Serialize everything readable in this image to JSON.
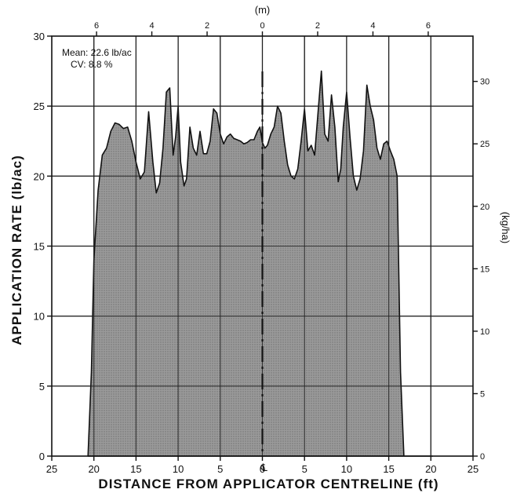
{
  "chart_data": {
    "type": "area",
    "xlabel": "DISTANCE FROM APPLICATOR CENTRELINE (ft)",
    "ylabel": "APPLICATION RATE (lb/ac)",
    "top_axis_label": "(m)",
    "right_axis_label": "(kg/ha)",
    "centreline_symbol": "℄",
    "annotation": {
      "mean": "Mean: 22.6 lb/ac",
      "cv": "CV: 8.8 %"
    },
    "xlim": [
      -25,
      25
    ],
    "ylim": [
      0,
      30
    ],
    "x_ticks": [
      -25,
      -20,
      -15,
      -10,
      -5,
      0,
      5,
      10,
      15,
      20,
      25
    ],
    "x_tick_labels": [
      "25",
      "20",
      "15",
      "10",
      "5",
      "0",
      "5",
      "10",
      "15",
      "20",
      "25"
    ],
    "y_ticks": [
      0,
      5,
      10,
      15,
      20,
      25,
      30
    ],
    "top_ticks_m": [
      -6,
      -4,
      -2,
      0,
      2,
      4,
      6
    ],
    "top_tick_labels": [
      "6",
      "4",
      "2",
      "0",
      "2",
      "4",
      "6"
    ],
    "right_ticks_kgha": [
      0,
      5,
      10,
      15,
      20,
      25,
      30
    ],
    "grid": true,
    "fill_color": "#9a9a9a",
    "line_color": "#111111",
    "series": [
      {
        "x": [
          -20.7,
          -20.3,
          -20.0,
          -19.5,
          -19.0,
          -18.5,
          -18.0,
          -17.5,
          -17.0,
          -16.5,
          -16.0,
          -15.5,
          -15.0,
          -14.5,
          -14.0,
          -13.5,
          -13.0,
          -12.6,
          -12.2,
          -11.8,
          -11.4,
          -11.0,
          -10.6,
          -10.3,
          -10.0,
          -9.7,
          -9.3,
          -9.0,
          -8.6,
          -8.2,
          -7.8,
          -7.4,
          -7.0,
          -6.6,
          -6.2,
          -5.8,
          -5.4,
          -5.0,
          -4.6,
          -4.2,
          -3.8,
          -3.4,
          -3.0,
          -2.6,
          -2.2,
          -1.8,
          -1.4,
          -1.0,
          -0.6,
          -0.3,
          0.0,
          0.3,
          0.6,
          1.0,
          1.4,
          1.8,
          2.2,
          2.6,
          3.0,
          3.4,
          3.8,
          4.2,
          4.6,
          5.0,
          5.4,
          5.8,
          6.2,
          6.6,
          7.0,
          7.4,
          7.8,
          8.2,
          8.6,
          9.0,
          9.3,
          9.6,
          10.0,
          10.4,
          10.8,
          11.2,
          11.6,
          12.0,
          12.4,
          12.8,
          13.2,
          13.6,
          14.0,
          14.4,
          14.8,
          15.2,
          15.6,
          16.0,
          16.4,
          16.8,
          17.2,
          17.6,
          18.0,
          18.4,
          18.8,
          19.2,
          19.6,
          19.9,
          20.2
        ],
        "y": [
          0,
          6,
          14,
          19,
          21.5,
          22,
          23.2,
          23.8,
          23.7,
          23.4,
          23.5,
          22.5,
          21.0,
          19.8,
          20.3,
          24.6,
          21.0,
          18.8,
          19.5,
          22.0,
          26.0,
          26.3,
          21.5,
          22.8,
          25.0,
          21.0,
          19.3,
          19.8,
          23.5,
          22.0,
          21.5,
          23.2,
          21.6,
          21.6,
          22.5,
          24.8,
          24.5,
          23.0,
          22.3,
          22.8,
          23.0,
          22.7,
          22.6,
          22.5,
          22.3,
          22.4,
          22.6,
          22.6,
          23.2,
          23.5,
          22.4,
          22.0,
          22.2,
          23.0,
          23.5,
          25.0,
          24.5,
          22.5,
          20.8,
          20.0,
          19.8,
          20.5,
          22.5,
          24.8,
          21.8,
          22.2,
          21.5,
          24.5,
          27.5,
          23.0,
          22.5,
          25.8,
          23.5,
          19.6,
          20.5,
          23.5,
          26.0,
          22.8,
          20.0,
          19.0,
          19.8,
          21.8,
          26.5,
          25.0,
          24.0,
          22.0,
          21.2,
          22.3,
          22.5,
          21.8,
          21.2,
          20.0,
          6.0,
          0,
          0,
          0,
          0,
          0,
          0,
          0,
          0,
          0,
          0
        ]
      }
    ]
  }
}
